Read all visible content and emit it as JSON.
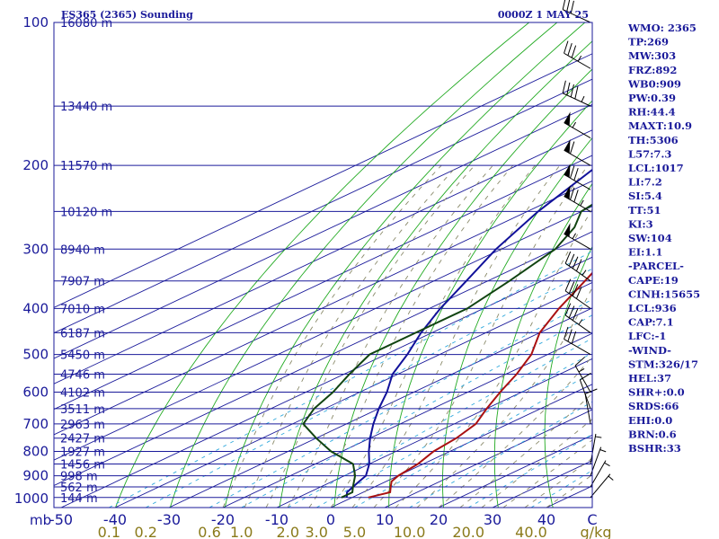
{
  "header": {
    "title": "ES365 (2365) Sounding",
    "datetime": "0000Z  1 MAY 25"
  },
  "stats": [
    "WMO: 2365",
    "TP:269",
    "MW:303",
    "FRZ:892",
    "WB0:909",
    "PW:0.39",
    "RH:44.4",
    "MAXT:10.9",
    "TH:5306",
    "L57:7.3",
    "LCL:1017",
    "LI:7.2",
    "SI:5.4",
    "TT:51",
    "KI:3",
    "SW:104",
    "EI:1.1",
    "-PARCEL-",
    "CAPE:19",
    "CINH:15655",
    "LCL:936",
    "CAP:7.1",
    "LFC:-1",
    "-WIND-",
    "STM:326/17",
    "HEL:37",
    "SHR+:0.0",
    "SRDS:66",
    "EHI:0.0",
    "BRN:0.6",
    "BSHR:33"
  ],
  "colors": {
    "frame": "#1a1a9a",
    "isobar": "#1a1a9a",
    "isotherm": "#1a1a9a",
    "dry_adiabat": "#22aa22",
    "moist_adiabat": "#8a8a6a",
    "mixing_ratio": "#33aadd",
    "temperature": "#aa1111",
    "dewpoint": "#11119a",
    "parcel": "#114411",
    "wind": "#000000"
  },
  "chart_data": {
    "type": "line",
    "title": "ES365 (2365) Sounding",
    "subtitle": "0000Z  1 MAY 25",
    "y_axis_unit": "mb",
    "x_axis_unit": "C",
    "pressure_ticks": [
      "100",
      "200",
      "300",
      "400",
      "500",
      "600",
      "700",
      "800",
      "900",
      "1000"
    ],
    "temperature_ticks": [
      "-50",
      "-40",
      "-30",
      "-20",
      "-10",
      "0",
      "10",
      "20",
      "30",
      "40"
    ],
    "mixing_ratio_ticks": [
      "0.1",
      "0.2",
      "0.6",
      "1.0",
      "2.0",
      "3.0",
      "5.0",
      "10.0",
      "20.0",
      "40.0",
      "g/kg"
    ],
    "height_labels": [
      {
        "p": 100,
        "label": "16080 m"
      },
      {
        "p": 150,
        "label": "13440 m"
      },
      {
        "p": 200,
        "label": "11570 m"
      },
      {
        "p": 250,
        "label": "10120 m"
      },
      {
        "p": 300,
        "label": "8940 m"
      },
      {
        "p": 350,
        "label": "7907 m"
      },
      {
        "p": 400,
        "label": "7010 m"
      },
      {
        "p": 450,
        "label": "6187 m"
      },
      {
        "p": 500,
        "label": "5450 m"
      },
      {
        "p": 550,
        "label": "4746 m"
      },
      {
        "p": 600,
        "label": "4102 m"
      },
      {
        "p": 650,
        "label": "3511 m"
      },
      {
        "p": 700,
        "label": "2963 m"
      },
      {
        "p": 750,
        "label": "2427 m"
      },
      {
        "p": 800,
        "label": "1927 m"
      },
      {
        "p": 850,
        "label": "1456 m"
      },
      {
        "p": 900,
        "label": "998 m"
      },
      {
        "p": 950,
        "label": "562 m"
      },
      {
        "p": 1000,
        "label": "144 m"
      }
    ],
    "series": [
      {
        "key": "temperature",
        "points": [
          [
            1000,
            3
          ],
          [
            975,
            5
          ],
          [
            950,
            3
          ],
          [
            925,
            1
          ],
          [
            900,
            0
          ],
          [
            850,
            -1
          ],
          [
            800,
            -3
          ],
          [
            750,
            -4
          ],
          [
            700,
            -6
          ],
          [
            650,
            -10
          ],
          [
            600,
            -14
          ],
          [
            550,
            -18
          ],
          [
            500,
            -23
          ],
          [
            450,
            -30
          ],
          [
            400,
            -36
          ],
          [
            350,
            -42
          ],
          [
            300,
            -49
          ],
          [
            250,
            -56
          ],
          [
            220,
            -57
          ],
          [
            200,
            -56
          ],
          [
            175,
            -57
          ],
          [
            150,
            -59
          ],
          [
            125,
            -61
          ],
          [
            100,
            -63
          ]
        ]
      },
      {
        "key": "dewpoint",
        "points": [
          [
            1000,
            -1
          ],
          [
            975,
            -3
          ],
          [
            950,
            -4
          ],
          [
            925,
            -5
          ],
          [
            900,
            -6
          ],
          [
            850,
            -10
          ],
          [
            800,
            -15
          ],
          [
            750,
            -20
          ],
          [
            700,
            -25
          ],
          [
            650,
            -30
          ],
          [
            600,
            -35
          ],
          [
            550,
            -41
          ],
          [
            500,
            -46
          ],
          [
            450,
            -52
          ],
          [
            400,
            -58
          ],
          [
            350,
            -64
          ],
          [
            300,
            -71
          ],
          [
            250,
            -78
          ],
          [
            200,
            -85
          ],
          [
            150,
            -91
          ],
          [
            120,
            -95
          ]
        ]
      },
      {
        "key": "parcel",
        "points": [
          [
            1000,
            -2
          ],
          [
            975,
            -2
          ],
          [
            950,
            -4
          ],
          [
            900,
            -8
          ],
          [
            850,
            -13
          ],
          [
            800,
            -22
          ],
          [
            750,
            -30
          ],
          [
            700,
            -38
          ],
          [
            650,
            -42
          ],
          [
            600,
            -45
          ],
          [
            550,
            -49
          ],
          [
            500,
            -53
          ],
          [
            450,
            -53
          ],
          [
            400,
            -53
          ],
          [
            350,
            -56
          ],
          [
            300,
            -60
          ],
          [
            270,
            -65
          ],
          [
            250,
            -70
          ],
          [
            225,
            -72
          ],
          [
            200,
            -68
          ],
          [
            175,
            -63
          ],
          [
            150,
            -56
          ],
          [
            125,
            -48
          ],
          [
            100,
            -41
          ]
        ]
      }
    ],
    "wind_barbs": [
      {
        "p": 100,
        "dir": 295,
        "spd": 30
      },
      {
        "p": 125,
        "dir": 300,
        "spd": 35
      },
      {
        "p": 150,
        "dir": 295,
        "spd": 45
      },
      {
        "p": 175,
        "dir": 300,
        "spd": 55
      },
      {
        "p": 200,
        "dir": 300,
        "spd": 60
      },
      {
        "p": 225,
        "dir": 300,
        "spd": 70
      },
      {
        "p": 250,
        "dir": 300,
        "spd": 75
      },
      {
        "p": 300,
        "dir": 300,
        "spd": 55
      },
      {
        "p": 350,
        "dir": 305,
        "spd": 45
      },
      {
        "p": 400,
        "dir": 305,
        "spd": 40
      },
      {
        "p": 450,
        "dir": 305,
        "spd": 35
      },
      {
        "p": 500,
        "dir": 300,
        "spd": 30
      },
      {
        "p": 600,
        "dir": 330,
        "spd": 15
      },
      {
        "p": 650,
        "dir": 340,
        "spd": 10
      },
      {
        "p": 700,
        "dir": 350,
        "spd": 10
      },
      {
        "p": 850,
        "dir": 10,
        "spd": 5
      },
      {
        "p": 900,
        "dir": 20,
        "spd": 5
      },
      {
        "p": 950,
        "dir": 30,
        "spd": 5
      },
      {
        "p": 1000,
        "dir": 40,
        "spd": 5
      }
    ]
  }
}
